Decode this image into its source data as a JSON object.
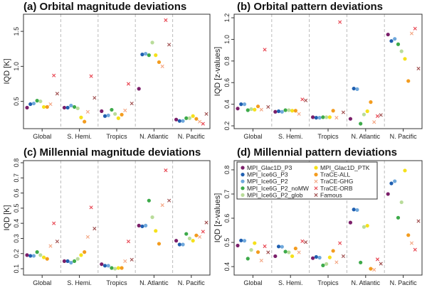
{
  "chart_data": [
    {
      "type": "scatter",
      "title": "(a) Orbital magnitude deviations",
      "ylabel": "IQD [K]",
      "categories": [
        "Global",
        "S. Hemi.",
        "Tropics",
        "N. Atlantic",
        "N. Pacific"
      ],
      "ylim": [
        0.11,
        1.745
      ],
      "yticks": [
        0.5,
        1.0,
        1.5
      ],
      "ytick_labels": [
        "0.5",
        "1.0",
        "1.5"
      ],
      "values": [
        [
          0.41,
          0.46,
          0.47,
          0.51,
          0.5,
          0.42,
          0.42,
          0.46,
          0.87,
          0.61
        ],
        [
          0.41,
          0.41,
          0.44,
          0.42,
          0.4,
          0.27,
          0.21,
          0.35,
          0.86,
          0.55
        ],
        [
          0.36,
          0.29,
          0.3,
          0.38,
          0.32,
          0.26,
          0.31,
          0.37,
          0.75,
          0.47
        ],
        [
          0.68,
          1.17,
          1.18,
          1.16,
          1.34,
          1.16,
          1.06,
          1.0,
          1.66,
          1.31
        ],
        [
          0.24,
          0.22,
          0.22,
          0.26,
          0.26,
          0.29,
          0.25,
          0.21,
          0.18,
          0.32
        ]
      ]
    },
    {
      "type": "scatter",
      "title": "(b) Orbital pattern deviations",
      "ylabel": "IQD [z-values]",
      "categories": [
        "Global",
        "S. Hemi.",
        "Tropics",
        "N. Atlantic",
        "N. Pacific"
      ],
      "ylim": [
        0.174,
        1.233
      ],
      "yticks": [
        0.2,
        0.4,
        0.6,
        0.8,
        1.0,
        1.2
      ],
      "ytick_labels": [
        "0.2",
        "0.4",
        "0.6",
        "0.8",
        "1.0",
        "1.2"
      ],
      "values": [
        [
          0.36,
          0.4,
          0.4,
          0.345,
          0.355,
          0.35,
          0.38,
          0.35,
          0.905,
          0.375
        ],
        [
          0.33,
          0.335,
          0.33,
          0.345,
          0.345,
          0.34,
          0.34,
          0.31,
          0.445,
          0.435
        ],
        [
          0.28,
          0.275,
          0.275,
          0.28,
          0.28,
          0.28,
          0.34,
          0.275,
          1.16,
          0.325
        ],
        [
          0.265,
          0.545,
          0.54,
          0.22,
          0.305,
          0.335,
          0.42,
          0.235,
          0.29,
          0.3
        ],
        [
          1.045,
          0.985,
          1.005,
          0.955,
          0.89,
          0.82,
          0.615,
          1.055,
          1.1,
          0.73
        ]
      ]
    },
    {
      "type": "scatter",
      "title": "(c) Millennial magnitude deviations",
      "ylabel": "IQD [K]",
      "categories": [
        "Global",
        "S. Hemi.",
        "Tropics",
        "N. Atlantic",
        "N. Pacific"
      ],
      "ylim": [
        0.058,
        0.814
      ],
      "yticks": [
        0.1,
        0.2,
        0.3,
        0.4,
        0.5,
        0.6,
        0.7,
        0.8
      ],
      "ytick_labels": [
        "0.1",
        "0.2",
        "0.3",
        "0.4",
        "0.5",
        "0.6",
        "0.7",
        "0.8"
      ],
      "values": [
        [
          0.19,
          0.185,
          0.185,
          0.21,
          0.19,
          0.175,
          0.165,
          0.25,
          0.4,
          0.28
        ],
        [
          0.15,
          0.15,
          0.14,
          0.15,
          0.165,
          0.19,
          0.21,
          0.31,
          0.505,
          0.365
        ],
        [
          0.13,
          0.12,
          0.12,
          0.105,
          0.1,
          0.105,
          0.105,
          0.15,
          0.28,
          0.16
        ],
        [
          0.385,
          0.38,
          0.385,
          0.55,
          0.44,
          0.35,
          0.265,
          0.52,
          0.75,
          0.55
        ],
        [
          0.285,
          0.26,
          0.26,
          0.33,
          0.3,
          0.285,
          0.32,
          0.31,
          0.345,
          0.405
        ]
      ]
    },
    {
      "type": "scatter",
      "title": "(d) Millennial pattern deviations",
      "ylabel": "IQD [z-values]",
      "categories": [
        "Global",
        "S. Hemi.",
        "Tropics",
        "N. Atlantic",
        "N. Pacific"
      ],
      "ylim": [
        0.365,
        0.838
      ],
      "yticks": [
        0.4,
        0.5,
        0.6,
        0.7,
        0.8
      ],
      "ytick_labels": [
        "0.4",
        "0.5",
        "0.6",
        "0.7",
        "0.8"
      ],
      "legend": "top-left",
      "values": [
        [
          0.487,
          0.508,
          0.507,
          0.433,
          0.469,
          0.497,
          0.46,
          0.425,
          0.484,
          0.459
        ],
        [
          0.443,
          0.483,
          0.482,
          0.462,
          0.459,
          0.443,
          0.475,
          0.459,
          0.505,
          0.501
        ],
        [
          0.435,
          0.44,
          0.437,
          0.405,
          0.411,
          0.438,
          0.465,
          0.418,
          0.497,
          0.443
        ],
        [
          0.582,
          0.636,
          0.634,
          0.417,
          0.564,
          0.569,
          0.391,
          0.387,
          0.43,
          0.412
        ],
        [
          0.7,
          0.744,
          0.753,
          0.602,
          0.666,
          0.797,
          0.53,
          0.497,
          0.47,
          0.588
        ]
      ]
    }
  ],
  "series": [
    {
      "name": "MPI_Glac1D_P3",
      "color": "#7b1f6a",
      "marker": "dot"
    },
    {
      "name": "MPI_Ice6G_P3",
      "color": "#1f5fb0",
      "marker": "dot"
    },
    {
      "name": "MPI_Ice6G_P2",
      "color": "#6fa8dc",
      "marker": "dot"
    },
    {
      "name": "MPI_Ice6G_P2_noMW",
      "color": "#3daa4a",
      "marker": "dot"
    },
    {
      "name": "MPI_Ice6G_P2_glob",
      "color": "#b9dc9a",
      "marker": "dot"
    },
    {
      "name": "MPI_Glac1D_PTK",
      "color": "#f5e11b",
      "marker": "dot"
    },
    {
      "name": "TraCE-ALL",
      "color": "#f39c1f",
      "marker": "dot"
    },
    {
      "name": "TraCE-GHG",
      "color": "#f4a582",
      "marker": "cross"
    },
    {
      "name": "TraCE-ORB",
      "color": "#e8434f",
      "marker": "cross"
    },
    {
      "name": "Famous",
      "color": "#9e4c4c",
      "marker": "cross"
    }
  ]
}
